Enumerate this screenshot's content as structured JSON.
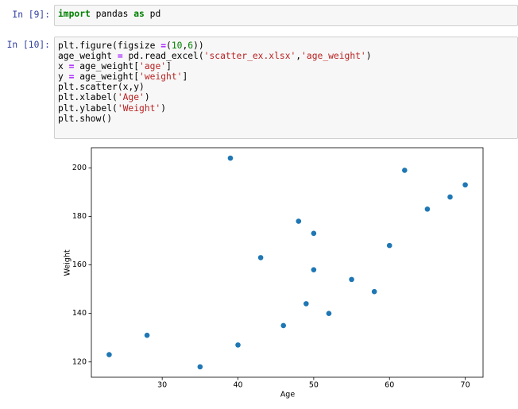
{
  "cells": [
    {
      "prompt": "In [9]:",
      "lines": [
        [
          "import",
          " pandas ",
          "as",
          " pd"
        ]
      ]
    },
    {
      "prompt": "In [10]:",
      "lines": [
        [
          "plt.figure(figsize ",
          "=",
          "(",
          "10",
          ",",
          "6",
          "))"
        ],
        [
          "age_weight ",
          "=",
          " pd.read_excel(",
          "'scatter_ex.xlsx'",
          ",",
          "'age_weight'",
          ")"
        ],
        [
          "x ",
          "=",
          " age_weight[",
          "'age'",
          "]"
        ],
        [
          "y ",
          "=",
          " age_weight[",
          "'weight'",
          "]"
        ],
        [
          "plt.scatter(x,y)"
        ],
        [
          "plt.xlabel(",
          "'Age'",
          ")"
        ],
        [
          "plt.ylabel(",
          "'Weight'",
          ")"
        ],
        [
          "plt.show()"
        ]
      ]
    }
  ],
  "chart_data": {
    "type": "scatter",
    "xlabel": "Age",
    "ylabel": "Weight",
    "color": "#1f77b4",
    "x": [
      23,
      28,
      35,
      39,
      40,
      43,
      46,
      48,
      49,
      50,
      50,
      52,
      55,
      58,
      60,
      62,
      65,
      68,
      70
    ],
    "y": [
      123,
      131,
      118,
      204,
      127,
      163,
      135,
      178,
      144,
      173,
      158,
      140,
      154,
      149,
      168,
      199,
      183,
      188,
      193
    ],
    "xlim": [
      20.65,
      72.35
    ],
    "ylim": [
      113.7,
      208.3
    ],
    "xticks": [
      30,
      40,
      50,
      60,
      70
    ],
    "yticks": [
      120,
      140,
      160,
      180,
      200
    ]
  }
}
